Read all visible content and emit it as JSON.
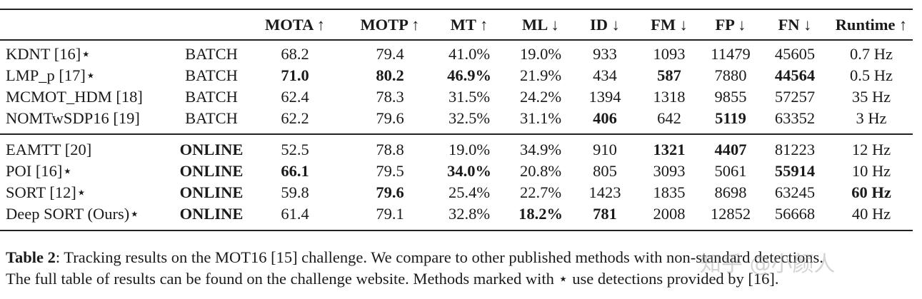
{
  "table": {
    "headers": [
      "",
      "",
      "MOTA ↑",
      "MOTP ↑",
      "MT ↑",
      "ML ↓",
      "ID ↓",
      "FM ↓",
      "FP ↓",
      "FN ↓",
      "Runtime ↑"
    ],
    "groups": [
      [
        {
          "cells": [
            "KDNT [16]⋆",
            "BATCH",
            "68.2",
            "79.4",
            "41.0%",
            "19.0%",
            "933",
            "1093",
            "11479",
            "45605",
            "0.7 Hz"
          ],
          "bold": []
        },
        {
          "cells": [
            "LMP_p [17]⋆",
            "BATCH",
            "71.0",
            "80.2",
            "46.9%",
            "21.9%",
            "434",
            "587",
            "7880",
            "44564",
            "0.5 Hz"
          ],
          "bold": [
            2,
            3,
            4,
            7,
            9
          ]
        },
        {
          "cells": [
            "MCMOT_HDM [18]",
            "BATCH",
            "62.4",
            "78.3",
            "31.5%",
            "24.2%",
            "1394",
            "1318",
            "9855",
            "57257",
            "35 Hz"
          ],
          "bold": []
        },
        {
          "cells": [
            "NOMTwSDP16 [19]",
            "BATCH",
            "62.2",
            "79.6",
            "32.5%",
            "31.1%",
            "406",
            "642",
            "5119",
            "63352",
            "3 Hz"
          ],
          "bold": [
            6,
            8
          ]
        }
      ],
      [
        {
          "cells": [
            "EAMTT [20]",
            "ONLINE",
            "52.5",
            "78.8",
            "19.0%",
            "34.9%",
            "910",
            "1321",
            "4407",
            "81223",
            "12 Hz"
          ],
          "bold": [
            1,
            7,
            8
          ]
        },
        {
          "cells": [
            "POI [16]⋆",
            "ONLINE",
            "66.1",
            "79.5",
            "34.0%",
            "20.8%",
            "805",
            "3093",
            "5061",
            "55914",
            "10 Hz"
          ],
          "bold": [
            1,
            2,
            4,
            9
          ]
        },
        {
          "cells": [
            "SORT [12]⋆",
            "ONLINE",
            "59.8",
            "79.6",
            "25.4%",
            "22.7%",
            "1423",
            "1835",
            "8698",
            "63245",
            "60 Hz"
          ],
          "bold": [
            1,
            3,
            10
          ]
        },
        {
          "cells": [
            "Deep SORT (Ours)⋆",
            "ONLINE",
            "61.4",
            "79.1",
            "32.8%",
            "18.2%",
            "781",
            "2008",
            "12852",
            "56668",
            "40 Hz"
          ],
          "bold": [
            1,
            5,
            6
          ]
        }
      ]
    ]
  },
  "caption": {
    "label": "Table 2",
    "line1": ": Tracking results on the MOT16 [15] challenge. We compare to other published methods with non-standard detections.",
    "line2": "The full table of results can be found on the challenge website. Methods marked with ⋆ use detections provided by [16]."
  },
  "watermark": "知乎 @小颜人"
}
